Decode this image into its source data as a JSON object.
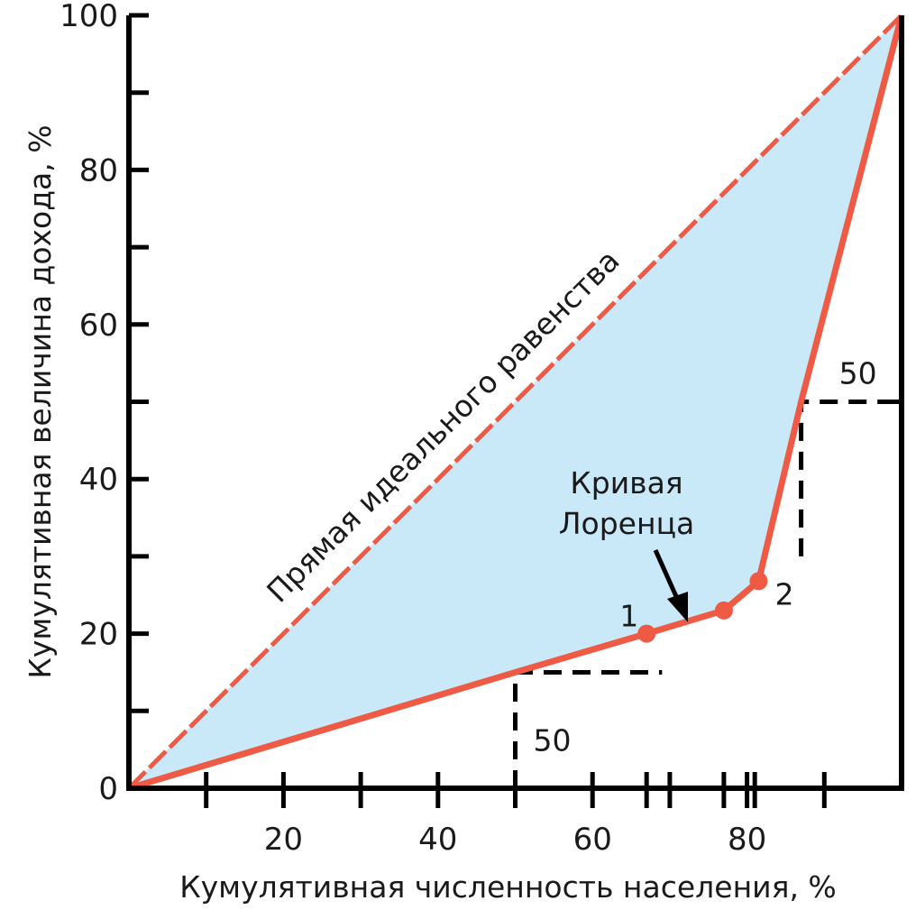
{
  "chart_data": {
    "type": "line",
    "xlabel": "Кумулятивная численность населения, %",
    "ylabel": "Кумулятивная величина дохода, %",
    "xlim": [
      0,
      100
    ],
    "ylim": [
      0,
      100
    ],
    "x_ticks": [
      20,
      40,
      60,
      80
    ],
    "y_ticks": [
      0,
      20,
      40,
      60,
      80,
      100
    ],
    "x_minor_ticks": [
      10,
      30,
      50,
      67,
      70,
      77,
      81,
      90
    ],
    "y_minor_ticks": [
      10,
      30,
      50,
      70,
      90
    ],
    "grid": false,
    "colors": {
      "curve": "#ef5a45",
      "fill": "#c9e8f8",
      "axis": "#000000",
      "guide": "#000000"
    },
    "series": [
      {
        "name": "Прямая идеального равенства",
        "style": "dashed",
        "x": [
          0,
          100
        ],
        "y": [
          0,
          100
        ]
      },
      {
        "name": "Кривая Лоренца",
        "style": "solid",
        "x": [
          0,
          50,
          67,
          77,
          81.5,
          87,
          100
        ],
        "y": [
          0,
          15,
          20,
          23,
          26.8,
          50,
          100
        ]
      }
    ],
    "markers": [
      {
        "x": 67,
        "y": 20,
        "label": "1"
      },
      {
        "x": 77,
        "y": 23,
        "label": ""
      },
      {
        "x": 81.5,
        "y": 26.8,
        "label": "2"
      }
    ],
    "guides": [
      {
        "from": [
          50,
          0
        ],
        "corner": [
          50,
          15
        ],
        "to": [
          69,
          15
        ],
        "label": "50"
      },
      {
        "from": [
          87,
          30
        ],
        "corner": [
          87,
          50
        ],
        "to": [
          100,
          50
        ],
        "label": "50"
      }
    ],
    "annotations": {
      "equality_line_label": "Прямая идеального равенства",
      "lorenz_label_line1": "Кривая",
      "lorenz_label_line2": "Лоренца"
    }
  }
}
